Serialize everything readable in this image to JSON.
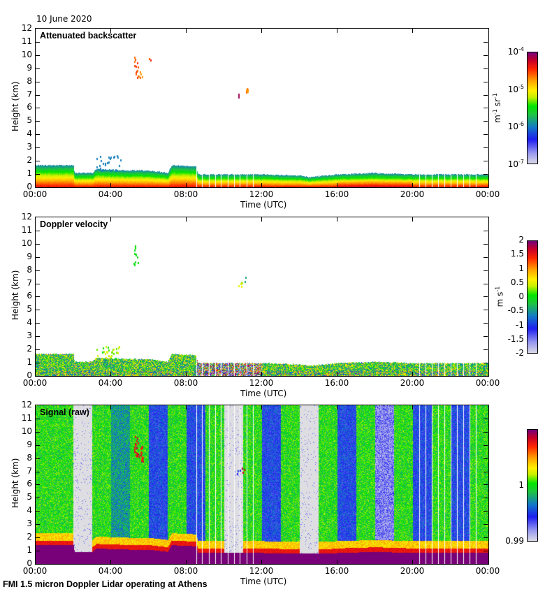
{
  "header": {
    "date": "10 June 2020"
  },
  "footer": {
    "text": "FMI 1.5 micron Doppler Lidar operating at Athens"
  },
  "chart_data": [
    {
      "type": "heatmap",
      "title": "Attenuated backscatter",
      "xlabel": "Time (UTC)",
      "ylabel": "Height (km)",
      "x_ticks": [
        "00:00",
        "04:00",
        "08:00",
        "12:00",
        "16:00",
        "20:00",
        "00:00"
      ],
      "y_ticks": [
        "0",
        "1",
        "2",
        "3",
        "4",
        "5",
        "6",
        "7",
        "8",
        "9",
        "10",
        "11",
        "12"
      ],
      "ylim": [
        0,
        12
      ],
      "xlim_hours": [
        0,
        24
      ],
      "colorbar": {
        "ticks": [
          "10-7",
          "10-6",
          "10-5",
          "10-4"
        ],
        "labels_html": [
          "10<sup>-7</sup>",
          "10<sup>-6</sup>",
          "10<sup>-5</sup>",
          "10<sup>-4</sup>"
        ],
        "unit_html": "m<sup>-1</sup> sr<sup>-1</sup>",
        "scale": "log",
        "range": [
          1e-07,
          0.0001
        ]
      },
      "features": {
        "boundary_layer_top_km": [
          [
            0,
            1.7
          ],
          [
            2,
            1.7
          ],
          [
            2.05,
            1.1
          ],
          [
            3,
            1.1
          ],
          [
            3.2,
            1.4
          ],
          [
            5,
            1.3
          ],
          [
            6,
            1.3
          ],
          [
            7,
            1.1
          ],
          [
            7.2,
            1.7
          ],
          [
            8.5,
            1.6
          ],
          [
            8.6,
            1.0
          ],
          [
            12,
            1.0
          ],
          [
            14,
            0.9
          ],
          [
            14.5,
            0.8
          ],
          [
            16,
            1.0
          ],
          [
            18,
            1.1
          ],
          [
            20,
            1.0
          ],
          [
            24,
            1.0
          ]
        ],
        "cirrus_patches_km": [
          {
            "t": 5.3,
            "h": [
              8.4,
              9.9
            ]
          },
          {
            "t": 10.7,
            "h": [
              6.8,
              7.6
            ]
          }
        ]
      }
    },
    {
      "type": "heatmap",
      "title": "Doppler velocity",
      "xlabel": "Time (UTC)",
      "ylabel": "Height (km)",
      "x_ticks": [
        "00:00",
        "04:00",
        "08:00",
        "12:00",
        "16:00",
        "20:00",
        "00:00"
      ],
      "y_ticks": [
        "0",
        "1",
        "2",
        "3",
        "4",
        "5",
        "6",
        "7",
        "8",
        "9",
        "10",
        "11",
        "12"
      ],
      "ylim": [
        0,
        12
      ],
      "colorbar": {
        "ticks": [
          "-2",
          "-1.5",
          "-1",
          "-0.5",
          "0",
          "0.5",
          "1",
          "1.5",
          "2"
        ],
        "unit_html": "m s<sup>-1</sup>",
        "range": [
          -2,
          2
        ]
      }
    },
    {
      "type": "heatmap",
      "title": "Signal (raw)",
      "xlabel": "Time (UTC)",
      "ylabel": "Height (km)",
      "x_ticks": [
        "00:00",
        "04:00",
        "08:00",
        "12:00",
        "16:00",
        "20:00",
        "00:00"
      ],
      "y_ticks": [
        "0",
        "1",
        "2",
        "3",
        "4",
        "5",
        "6",
        "7",
        "8",
        "9",
        "10",
        "11",
        "12"
      ],
      "ylim": [
        0,
        12
      ],
      "colorbar": {
        "ticks": [
          "0.99",
          "1"
        ],
        "range": [
          0.99,
          1.01
        ]
      },
      "features": {
        "column_blocks_hours": [
          {
            "from": 0,
            "to": 2,
            "style": "green"
          },
          {
            "from": 2,
            "to": 3,
            "style": "gray"
          },
          {
            "from": 3,
            "to": 4,
            "style": "green"
          },
          {
            "from": 4,
            "to": 5,
            "style": "bluegreen"
          },
          {
            "from": 5,
            "to": 6,
            "style": "green"
          },
          {
            "from": 6,
            "to": 7,
            "style": "blue"
          },
          {
            "from": 7,
            "to": 8,
            "style": "green"
          },
          {
            "from": 8,
            "to": 9,
            "style": "blue"
          },
          {
            "from": 9,
            "to": 10,
            "style": "green"
          },
          {
            "from": 10,
            "to": 11,
            "style": "gray"
          },
          {
            "from": 11,
            "to": 12,
            "style": "green"
          },
          {
            "from": 12,
            "to": 13,
            "style": "blue"
          },
          {
            "from": 13,
            "to": 14,
            "style": "green"
          },
          {
            "from": 14,
            "to": 15,
            "style": "gray"
          },
          {
            "from": 15,
            "to": 16,
            "style": "green"
          },
          {
            "from": 16,
            "to": 17,
            "style": "blue"
          },
          {
            "from": 17,
            "to": 18,
            "style": "green"
          },
          {
            "from": 18,
            "to": 19,
            "style": "lightblue"
          },
          {
            "from": 19,
            "to": 20,
            "style": "green"
          },
          {
            "from": 20,
            "to": 21,
            "style": "blue"
          },
          {
            "from": 21,
            "to": 22,
            "style": "green"
          },
          {
            "from": 22,
            "to": 23,
            "style": "blue"
          },
          {
            "from": 23,
            "to": 24,
            "style": "green"
          }
        ]
      }
    }
  ]
}
